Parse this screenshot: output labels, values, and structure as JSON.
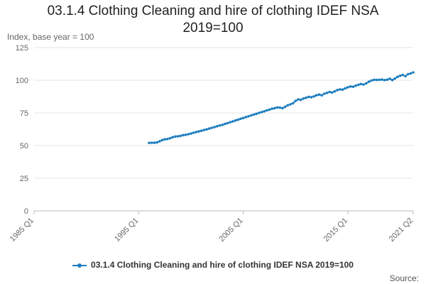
{
  "chart_data": {
    "type": "line",
    "title_lines": [
      "03.1.4 Clothing Cleaning and hire of clothing IDEF NSA",
      "2019=100"
    ],
    "ylabel": "Index, base year = 100",
    "xlabel": "",
    "yticks": [
      0,
      25,
      50,
      75,
      100,
      125
    ],
    "ylim": [
      0,
      125
    ],
    "xlim_quarters": [
      "1985 Q1",
      "2021 Q2"
    ],
    "xtick_labels": [
      "1985 Q1",
      "1995 Q1",
      "2005 Q1",
      "2015 Q1",
      "2021 Q2"
    ],
    "grid": true,
    "legend_position": "bottom",
    "series": [
      {
        "name": "03.1.4 Clothing Cleaning and hire of clothing IDEF NSA 2019=100",
        "color": "#1f7fbf",
        "points": [
          [
            "1996 Q1",
            52.0
          ],
          [
            "1996 Q2",
            52.2
          ],
          [
            "1996 Q3",
            52.1
          ],
          [
            "1996 Q4",
            52.4
          ],
          [
            "1997 Q1",
            53.2
          ],
          [
            "1997 Q2",
            54.2
          ],
          [
            "1997 Q3",
            54.8
          ],
          [
            "1997 Q4",
            55.0
          ],
          [
            "1998 Q1",
            55.6
          ],
          [
            "1998 Q2",
            56.4
          ],
          [
            "1998 Q3",
            56.9
          ],
          [
            "1998 Q4",
            57.1
          ],
          [
            "1999 Q1",
            57.4
          ],
          [
            "1999 Q2",
            58.0
          ],
          [
            "1999 Q3",
            58.2
          ],
          [
            "1999 Q4",
            58.7
          ],
          [
            "2000 Q1",
            59.2
          ],
          [
            "2000 Q2",
            59.8
          ],
          [
            "2000 Q3",
            60.3
          ],
          [
            "2000 Q4",
            60.8
          ],
          [
            "2001 Q1",
            61.3
          ],
          [
            "2001 Q2",
            61.9
          ],
          [
            "2001 Q3",
            62.4
          ],
          [
            "2001 Q4",
            63.0
          ],
          [
            "2002 Q1",
            63.6
          ],
          [
            "2002 Q2",
            64.2
          ],
          [
            "2002 Q3",
            64.8
          ],
          [
            "2002 Q4",
            65.3
          ],
          [
            "2003 Q1",
            65.8
          ],
          [
            "2003 Q2",
            66.5
          ],
          [
            "2003 Q3",
            67.2
          ],
          [
            "2003 Q4",
            67.9
          ],
          [
            "2004 Q1",
            68.5
          ],
          [
            "2004 Q2",
            69.2
          ],
          [
            "2004 Q3",
            69.8
          ],
          [
            "2004 Q4",
            70.5
          ],
          [
            "2005 Q1",
            71.1
          ],
          [
            "2005 Q2",
            71.8
          ],
          [
            "2005 Q3",
            72.4
          ],
          [
            "2005 Q4",
            73.1
          ],
          [
            "2006 Q1",
            73.7
          ],
          [
            "2006 Q2",
            74.3
          ],
          [
            "2006 Q3",
            75.0
          ],
          [
            "2006 Q4",
            75.6
          ],
          [
            "2007 Q1",
            76.2
          ],
          [
            "2007 Q2",
            76.9
          ],
          [
            "2007 Q3",
            77.5
          ],
          [
            "2007 Q4",
            78.2
          ],
          [
            "2008 Q1",
            78.6
          ],
          [
            "2008 Q2",
            79.2
          ],
          [
            "2008 Q3",
            79.0
          ],
          [
            "2008 Q4",
            78.6
          ],
          [
            "2009 Q1",
            79.6
          ],
          [
            "2009 Q2",
            80.8
          ],
          [
            "2009 Q3",
            81.5
          ],
          [
            "2009 Q4",
            82.4
          ],
          [
            "2010 Q1",
            84.2
          ],
          [
            "2010 Q2",
            85.3
          ],
          [
            "2010 Q3",
            85.0
          ],
          [
            "2010 Q4",
            86.0
          ],
          [
            "2011 Q1",
            86.6
          ],
          [
            "2011 Q2",
            87.3
          ],
          [
            "2011 Q3",
            87.0
          ],
          [
            "2011 Q4",
            87.6
          ],
          [
            "2012 Q1",
            88.5
          ],
          [
            "2012 Q2",
            89.0
          ],
          [
            "2012 Q3",
            88.5
          ],
          [
            "2012 Q4",
            89.7
          ],
          [
            "2013 Q1",
            90.3
          ],
          [
            "2013 Q2",
            91.0
          ],
          [
            "2013 Q3",
            90.6
          ],
          [
            "2013 Q4",
            91.5
          ],
          [
            "2014 Q1",
            92.5
          ],
          [
            "2014 Q2",
            93.0
          ],
          [
            "2014 Q3",
            92.8
          ],
          [
            "2014 Q4",
            93.8
          ],
          [
            "2015 Q1",
            94.6
          ],
          [
            "2015 Q2",
            95.2
          ],
          [
            "2015 Q3",
            95.0
          ],
          [
            "2015 Q4",
            95.8
          ],
          [
            "2016 Q1",
            96.5
          ],
          [
            "2016 Q2",
            97.1
          ],
          [
            "2016 Q3",
            96.7
          ],
          [
            "2016 Q4",
            97.6
          ],
          [
            "2017 Q1",
            98.8
          ],
          [
            "2017 Q2",
            99.8
          ],
          [
            "2017 Q3",
            100.3
          ],
          [
            "2017 Q4",
            100.2
          ],
          [
            "2018 Q1",
            100.3
          ],
          [
            "2018 Q2",
            100.5
          ],
          [
            "2018 Q3",
            100.1
          ],
          [
            "2018 Q4",
            100.4
          ],
          [
            "2019 Q1",
            101.2
          ],
          [
            "2019 Q2",
            100.1
          ],
          [
            "2019 Q3",
            101.3
          ],
          [
            "2019 Q4",
            102.6
          ],
          [
            "2020 Q1",
            103.4
          ],
          [
            "2020 Q2",
            104.1
          ],
          [
            "2020 Q3",
            103.1
          ],
          [
            "2020 Q4",
            104.6
          ],
          [
            "2021 Q1",
            105.2
          ],
          [
            "2021 Q2",
            106.0
          ]
        ]
      }
    ]
  },
  "source_label": "Source:"
}
